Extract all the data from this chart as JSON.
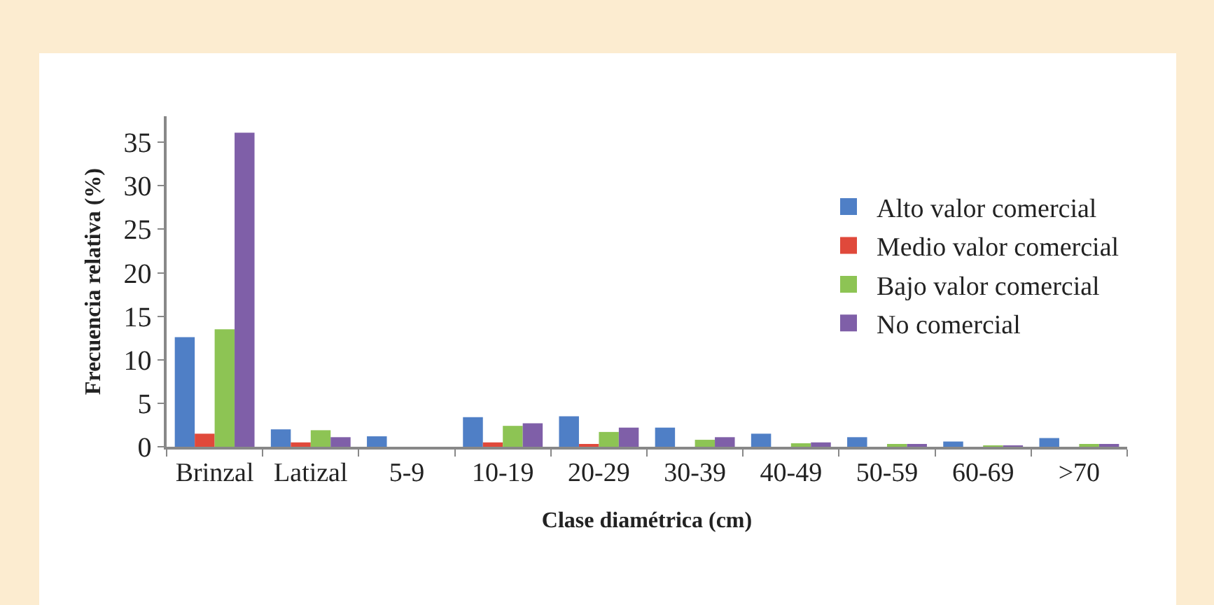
{
  "chart_data": {
    "type": "bar",
    "xlabel": "Clase diamétrica (cm)",
    "ylabel": "Frecuencia relativa (%)",
    "categories": [
      "Brinzal",
      "Latizal",
      "5-9",
      "10-19",
      "20-29",
      "30-39",
      "40-49",
      "50-59",
      "60-69",
      ">70"
    ],
    "series": [
      {
        "name": "Alto valor comercial",
        "color": "#4f7fc6",
        "values": [
          12.6,
          2.0,
          1.2,
          3.4,
          3.5,
          2.2,
          1.5,
          1.1,
          0.6,
          1.0
        ]
      },
      {
        "name": "Medio valor comercial",
        "color": "#e0493b",
        "values": [
          1.5,
          0.5,
          0,
          0.5,
          0.2,
          0,
          0,
          0,
          0,
          0
        ]
      },
      {
        "name": "Bajo valor comercial",
        "color": "#8dc454",
        "values": [
          13.5,
          1.9,
          0,
          2.4,
          1.7,
          0.8,
          0.4,
          0.2,
          0.1,
          0.2
        ]
      },
      {
        "name": "No comercial",
        "color": "#7f5fa8",
        "values": [
          36.1,
          1.1,
          0,
          2.7,
          2.2,
          1.1,
          0.5,
          0.2,
          0.1,
          0.2
        ]
      }
    ],
    "ylim": [
      0,
      38
    ],
    "yticks": [
      0,
      5,
      10,
      15,
      20,
      25,
      30,
      35
    ],
    "grid": false,
    "legend": "right"
  }
}
